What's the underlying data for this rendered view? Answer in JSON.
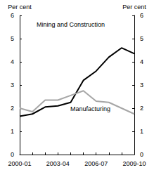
{
  "chart_data": {
    "type": "line",
    "y_label": "Per cent",
    "y2_label": "Per cent",
    "categories": [
      "2000-01",
      null,
      null,
      "2003-04",
      null,
      null,
      "2006-07",
      null,
      null,
      "2009-10"
    ],
    "series": [
      {
        "name": "Mining and Construction",
        "color": "#000000",
        "values": [
          1.65,
          1.75,
          2.05,
          2.1,
          2.25,
          3.2,
          3.6,
          4.2,
          4.6,
          4.35
        ]
      },
      {
        "name": "Manufacturing",
        "color": "#a6a6a6",
        "values": [
          2.0,
          1.85,
          2.35,
          2.35,
          2.55,
          2.75,
          2.3,
          2.25,
          2.0,
          1.75
        ]
      }
    ],
    "ylim": [
      0,
      6
    ],
    "yticks": [
      0,
      1,
      2,
      3,
      4,
      5,
      6
    ],
    "y2lim": [
      0,
      6
    ],
    "y2ticks": [
      0,
      1,
      2,
      3,
      4,
      5,
      6
    ],
    "grid": false,
    "legend": false
  }
}
